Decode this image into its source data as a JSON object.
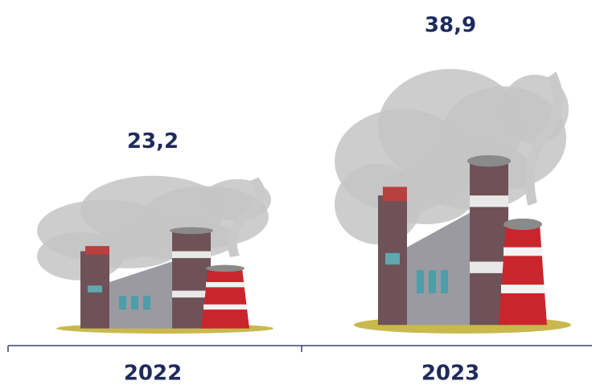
{
  "chart_data": {
    "type": "pictograph",
    "categories": [
      "2022",
      "2023"
    ],
    "values": [
      23.2,
      38.9
    ],
    "value_labels": [
      "23,2",
      "38,9"
    ]
  }
}
